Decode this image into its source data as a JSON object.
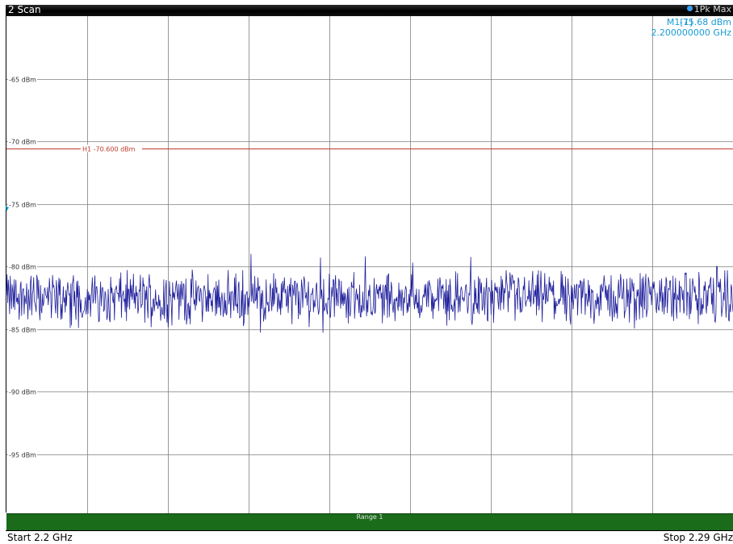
{
  "window": {
    "title": "2 Scan",
    "trace_label": "1Pk Max",
    "trace_color": "#3aa0ff"
  },
  "marker": {
    "name": "M1[1]",
    "level": "-75.68 dBm",
    "frequency": "2.200000000 GHz",
    "color": "#1a9bd7"
  },
  "limit_line": {
    "label": "H1 -70.600 dBm",
    "value_dbm": -70.6,
    "color": "#c0392b"
  },
  "axis": {
    "y_ticks": [
      {
        "value": -65,
        "label": "-65 dBm"
      },
      {
        "value": -70,
        "label": "-70 dBm"
      },
      {
        "value": -75,
        "label": "-75 dBm"
      },
      {
        "value": -80,
        "label": "-80 dBm"
      },
      {
        "value": -85,
        "label": "-85 dBm"
      },
      {
        "value": -90,
        "label": "-90 dBm"
      },
      {
        "value": -95,
        "label": "-95 dBm"
      }
    ],
    "ylim": [
      -100,
      -60
    ],
    "x_divisions": 9
  },
  "range_bar": {
    "label": "Range 1",
    "color": "#1a6b1a"
  },
  "footer": {
    "start": "Start 2.2 GHz",
    "stop": "Stop 2.29 GHz"
  },
  "chart_data": {
    "type": "line",
    "xlim": [
      2.2,
      2.29
    ],
    "x_unit": "GHz",
    "y_unit": "dBm",
    "noise_floor_dbm": -82.5,
    "noise_range_dbm": [
      -85.3,
      -79.2
    ],
    "series_color": "#1f1f9c",
    "peaks": [
      {
        "x_ghz": 2.2303,
        "y_dbm": -79.0
      },
      {
        "x_ghz": 2.2389,
        "y_dbm": -79.3
      },
      {
        "x_ghz": 2.2503,
        "y_dbm": -79.7
      },
      {
        "x_ghz": 2.288,
        "y_dbm": -80.0
      }
    ]
  }
}
